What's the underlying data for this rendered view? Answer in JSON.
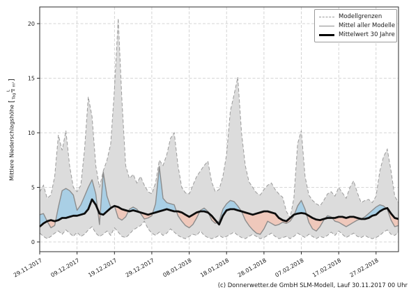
{
  "footer_credit": "(c) Donnerwetter.de GmbH SLM-Modell, Lauf 30.11.2017 00 Uhr",
  "chart_data": {
    "type": "line",
    "title": "",
    "xlabel": "",
    "ylabel": {
      "text": "Mittlere Niederschlagshöhe",
      "bracket_open": "[",
      "unit_numerator": "L",
      "unit_denominator": "Tag × m²",
      "bracket_close": "]"
    },
    "grid": true,
    "ylim": [
      -0.9,
      21.5
    ],
    "y_ticks": [
      0,
      5,
      10,
      15,
      20
    ],
    "x_start_date": "29.11.2017",
    "x_days_total": 96,
    "x_tick_days": [
      0,
      10,
      20,
      30,
      40,
      50,
      60,
      70,
      80,
      90
    ],
    "x_tick_labels": [
      "29.11.2017",
      "09.12.2017",
      "19.12.2017",
      "29.12.2017",
      "08.01.2018",
      "18.01.2018",
      "28.01.2018",
      "07.02.2018",
      "17.02.2018",
      "27.02.2018"
    ],
    "legend": {
      "position": "top-right",
      "entries": [
        {
          "label": "Modellgrenzen",
          "style": "dashed-gray"
        },
        {
          "label": "Mittel aller Modelle",
          "style": "solid-gray"
        },
        {
          "label": "Mittelwert 30 Jahre",
          "style": "solid-black-thick"
        }
      ]
    },
    "colors": {
      "band_fill": "#dcdcdc",
      "band_edge": "#9a9a9a",
      "model_mean_line": "#8c8c8c",
      "mean30_line": "#0d0d0d",
      "above_normal_fill": "#a9cfe5",
      "below_normal_fill": "#efc8bb",
      "grid": "#c9c9c9",
      "spine": "#2b2b2b"
    },
    "series": [
      {
        "name": "Modellgrenzen (Maximum)",
        "values": [
          4.6,
          5.2,
          4.0,
          4.3,
          6.0,
          9.8,
          8.4,
          10.2,
          7.0,
          5.0,
          4.6,
          5.2,
          8.5,
          13.3,
          11.5,
          7.0,
          5.0,
          6.5,
          7.5,
          9.0,
          14.0,
          20.5,
          13.0,
          7.0,
          5.8,
          6.2,
          5.4,
          6.0,
          5.2,
          4.6,
          4.4,
          5.4,
          7.5,
          7.0,
          8.0,
          9.5,
          10.0,
          7.0,
          5.0,
          4.5,
          4.4,
          5.2,
          6.0,
          6.5,
          7.0,
          7.4,
          5.5,
          4.6,
          4.8,
          6.0,
          8.0,
          12.0,
          13.5,
          15.1,
          10.0,
          7.0,
          5.5,
          5.0,
          4.5,
          4.3,
          4.8,
          5.2,
          5.4,
          4.8,
          4.4,
          4.1,
          2.8,
          2.2,
          4.0,
          9.0,
          10.2,
          6.0,
          4.3,
          3.8,
          3.5,
          3.3,
          3.8,
          4.4,
          4.6,
          4.2,
          5.0,
          4.5,
          4.0,
          5.0,
          5.6,
          4.5,
          3.6,
          3.8,
          3.9,
          3.6,
          4.2,
          6.5,
          7.8,
          8.5,
          6.5,
          4.2,
          3.6
        ]
      },
      {
        "name": "Modellgrenzen (Minimum)",
        "values": [
          0.8,
          0.5,
          0.3,
          0.5,
          0.8,
          1.0,
          0.7,
          1.1,
          0.8,
          0.5,
          0.9,
          0.5,
          0.7,
          1.1,
          1.4,
          0.8,
          0.5,
          0.7,
          1.0,
          0.6,
          1.3,
          0.9,
          0.5,
          0.4,
          0.7,
          1.1,
          1.3,
          1.5,
          1.9,
          1.2,
          0.8,
          0.6,
          0.9,
          0.6,
          0.8,
          1.2,
          0.9,
          0.6,
          0.4,
          0.3,
          0.5,
          0.7,
          0.6,
          1.0,
          0.6,
          0.4,
          0.3,
          0.4,
          0.6,
          0.4,
          0.5,
          0.7,
          0.9,
          0.6,
          0.4,
          0.3,
          0.5,
          0.7,
          0.5,
          0.3,
          0.4,
          0.6,
          0.8,
          0.5,
          0.3,
          0.4,
          0.5,
          0.3,
          0.5,
          0.8,
          0.6,
          0.4,
          0.7,
          0.5,
          0.3,
          0.5,
          0.4,
          0.6,
          0.9,
          0.6,
          1.0,
          0.7,
          0.4,
          0.6,
          0.8,
          0.5,
          0.4,
          0.6,
          0.4,
          0.3,
          0.4,
          0.6,
          0.9,
          1.1,
          0.7,
          0.6,
          0.9
        ]
      },
      {
        "name": "Mittel aller Modelle",
        "values": [
          2.5,
          2.6,
          1.9,
          1.3,
          1.5,
          3.2,
          4.7,
          4.9,
          4.7,
          4.3,
          2.9,
          3.4,
          4.2,
          5.0,
          5.7,
          4.4,
          1.6,
          6.4,
          4.2,
          3.2,
          3.3,
          2.2,
          2.0,
          2.3,
          3.0,
          3.2,
          3.0,
          2.6,
          2.1,
          2.2,
          2.4,
          3.5,
          6.9,
          4.0,
          3.6,
          3.5,
          3.4,
          2.4,
          1.9,
          1.5,
          1.3,
          1.6,
          2.2,
          2.9,
          3.1,
          2.8,
          2.0,
          1.7,
          1.9,
          3.0,
          3.5,
          3.8,
          3.7,
          3.3,
          2.8,
          2.0,
          1.5,
          1.1,
          0.8,
          0.7,
          1.2,
          1.9,
          1.7,
          1.5,
          1.6,
          1.8,
          1.7,
          1.9,
          2.4,
          3.3,
          3.8,
          3.0,
          1.8,
          1.2,
          1.0,
          1.4,
          2.0,
          2.4,
          2.3,
          1.9,
          1.8,
          1.6,
          1.4,
          1.6,
          1.8,
          2.0,
          2.1,
          2.3,
          2.6,
          2.9,
          3.2,
          3.4,
          3.3,
          3.0,
          2.0,
          1.4,
          1.5
        ]
      },
      {
        "name": "Mittelwert 30 Jahre",
        "values": [
          1.4,
          1.7,
          1.9,
          2.0,
          1.9,
          2.0,
          2.2,
          2.2,
          2.3,
          2.4,
          2.4,
          2.5,
          2.6,
          3.0,
          3.9,
          3.4,
          2.6,
          2.5,
          2.8,
          3.1,
          3.3,
          3.2,
          3.0,
          2.9,
          2.8,
          2.9,
          2.8,
          2.7,
          2.6,
          2.5,
          2.6,
          2.7,
          2.8,
          2.9,
          3.0,
          2.9,
          2.8,
          2.8,
          2.7,
          2.5,
          2.3,
          2.5,
          2.7,
          2.8,
          2.8,
          2.7,
          2.4,
          2.0,
          1.6,
          2.4,
          2.9,
          3.0,
          3.0,
          2.9,
          2.8,
          2.7,
          2.6,
          2.5,
          2.6,
          2.7,
          2.8,
          2.8,
          2.7,
          2.6,
          2.2,
          2.0,
          1.9,
          2.2,
          2.5,
          2.6,
          2.65,
          2.6,
          2.4,
          2.2,
          2.05,
          2.0,
          2.1,
          2.2,
          2.2,
          2.2,
          2.3,
          2.3,
          2.2,
          2.3,
          2.3,
          2.2,
          2.1,
          2.1,
          2.2,
          2.4,
          2.5,
          2.8,
          3.0,
          3.1,
          2.6,
          2.2,
          2.1
        ]
      }
    ]
  }
}
